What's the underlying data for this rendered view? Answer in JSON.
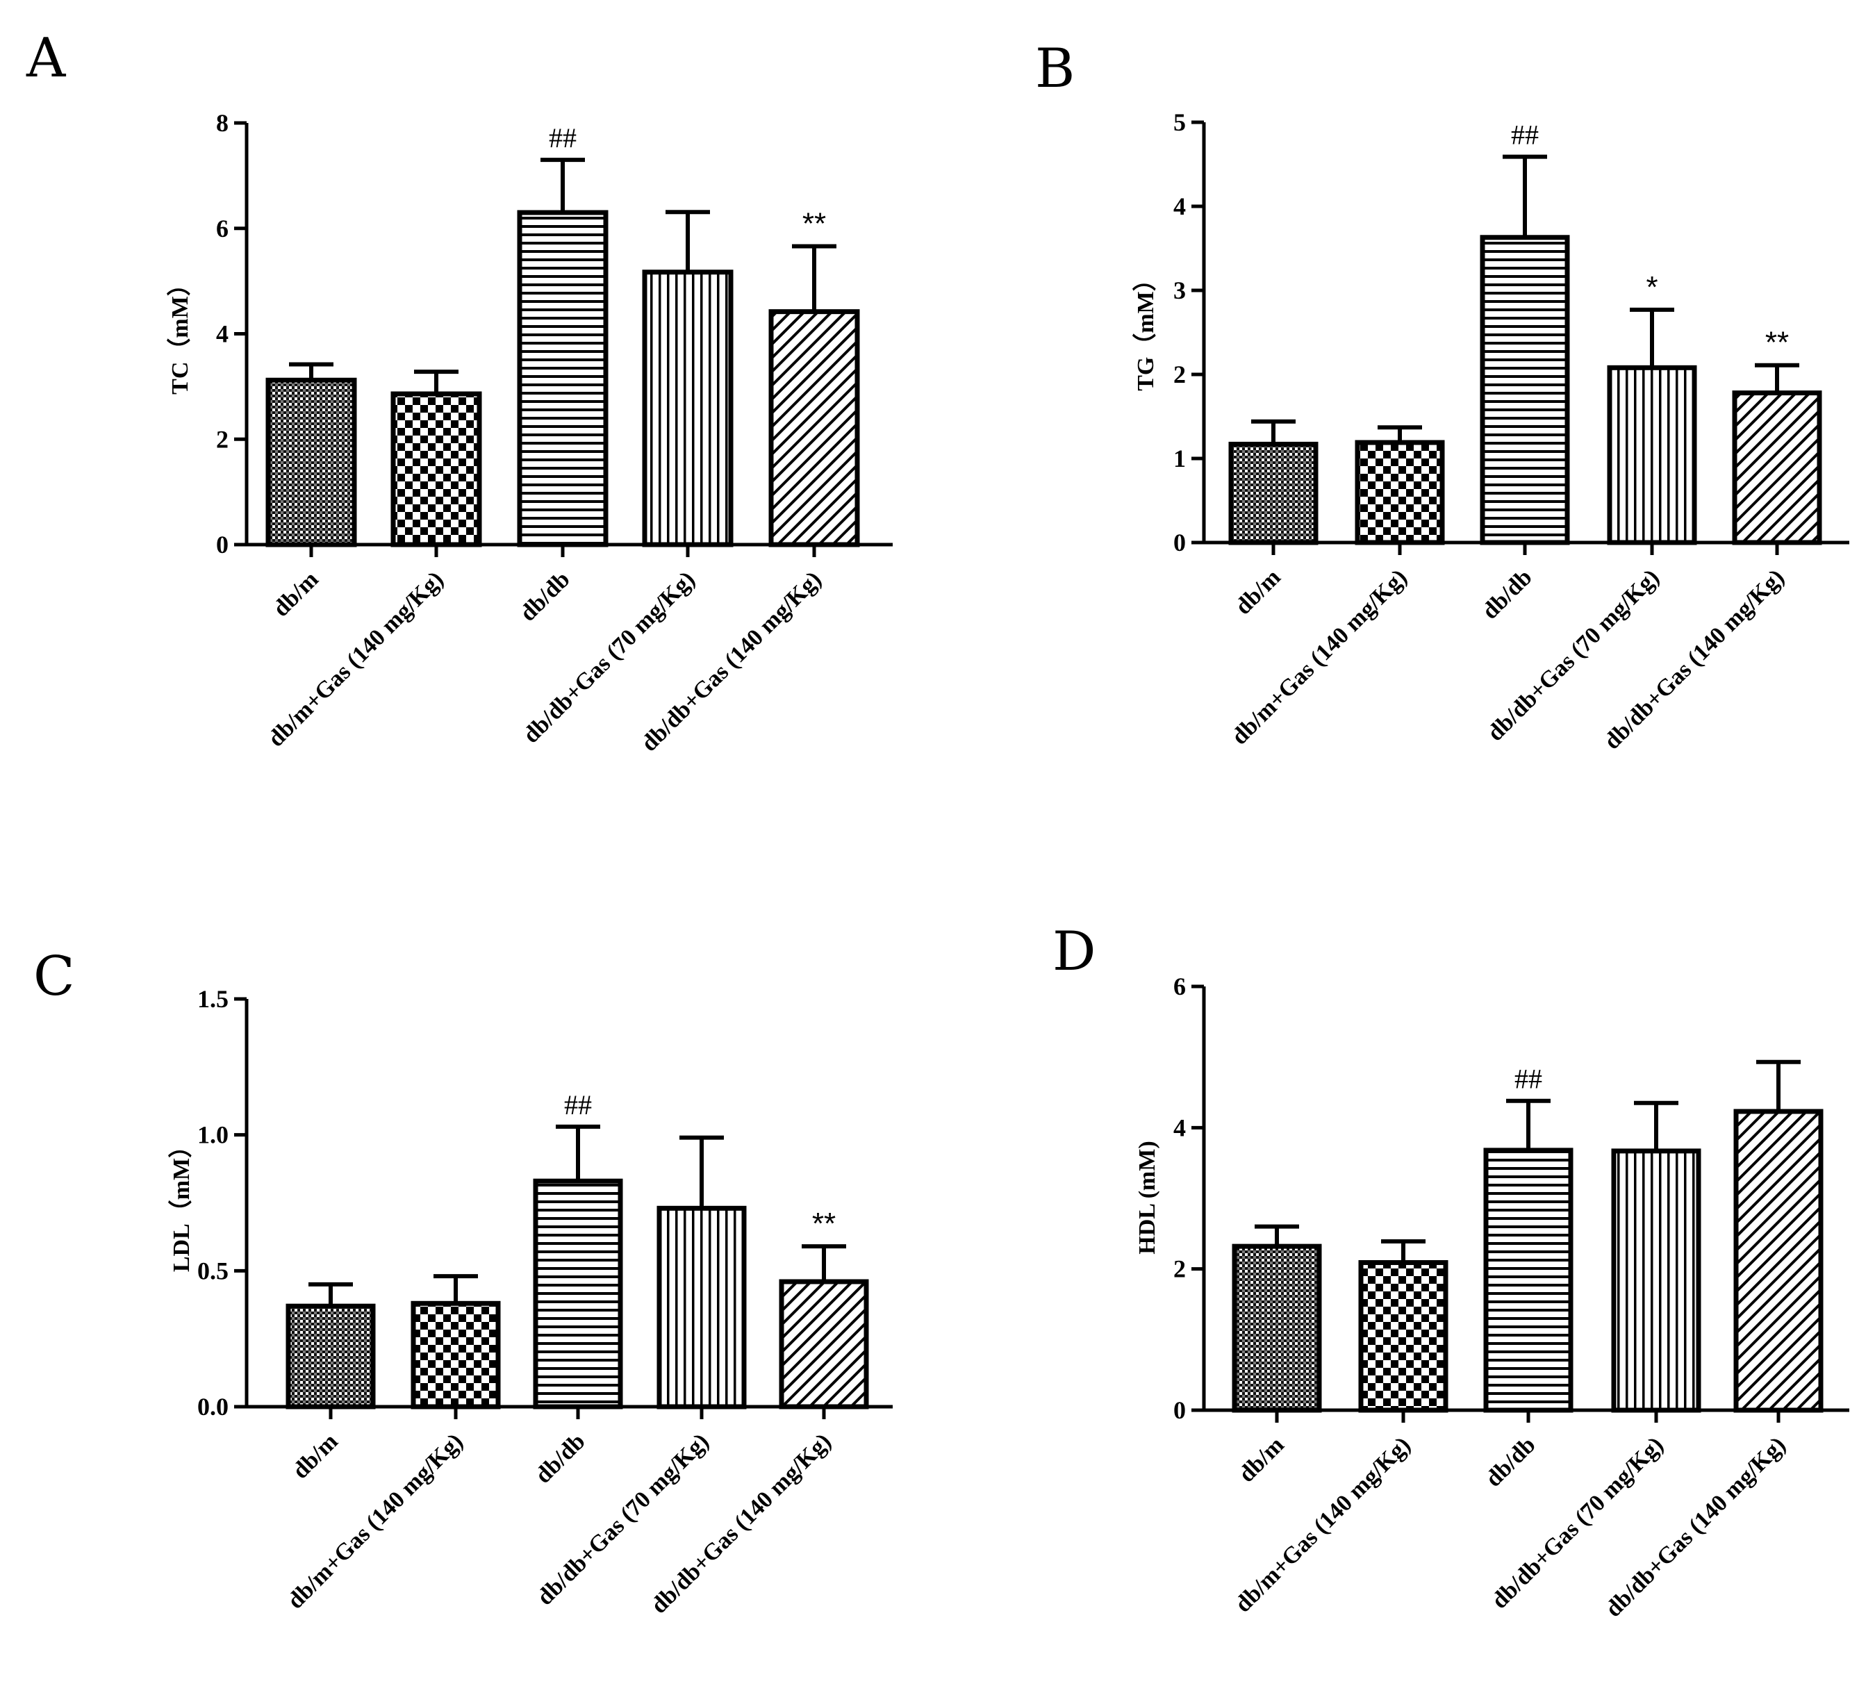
{
  "categories": [
    "db/m",
    "db/m+Gas (140 mg/Kg)",
    "db/db",
    "db/db+Gas (70 mg/Kg)",
    "db/db+Gas (140 mg/Kg)"
  ],
  "chart_data": [
    {
      "panel": "A",
      "type": "bar",
      "ylabel": "TC（mM）",
      "ylim": [
        0,
        8
      ],
      "yticks": [
        "0",
        "2",
        "4",
        "6",
        "8"
      ],
      "tick_values": [
        0,
        2,
        4,
        6,
        8
      ],
      "categories": [
        "db/m",
        "db/m+Gas (140 mg/Kg)",
        "db/db",
        "db/db+Gas (70 mg/Kg)",
        "db/db+Gas (140 mg/Kg)"
      ],
      "values": [
        3.12,
        2.86,
        6.3,
        5.17,
        4.42
      ],
      "errors": [
        0.3,
        0.42,
        1.0,
        1.14,
        1.24
      ],
      "annotations": [
        "",
        "",
        "##",
        "",
        "**"
      ]
    },
    {
      "panel": "B",
      "type": "bar",
      "ylabel": "TG（mM）",
      "ylim": [
        0,
        5
      ],
      "yticks": [
        "0",
        "1",
        "2",
        "3",
        "4",
        "5"
      ],
      "tick_values": [
        0,
        1,
        2,
        3,
        4,
        5
      ],
      "categories": [
        "db/m",
        "db/m+Gas (140 mg/Kg)",
        "db/db",
        "db/db+Gas (70 mg/Kg)",
        "db/db+Gas (140 mg/Kg)"
      ],
      "values": [
        1.17,
        1.19,
        3.63,
        2.08,
        1.78
      ],
      "errors": [
        0.27,
        0.18,
        0.96,
        0.69,
        0.33
      ],
      "annotations": [
        "",
        "",
        "##",
        "*",
        "**"
      ]
    },
    {
      "panel": "C",
      "type": "bar",
      "ylabel": "LDL（mM）",
      "ylim": [
        0,
        1.5
      ],
      "yticks": [
        "0.0",
        "0.5",
        "1.0",
        "1.5"
      ],
      "tick_values": [
        0,
        0.5,
        1.0,
        1.5
      ],
      "categories": [
        "db/m",
        "db/m+Gas (140 mg/Kg)",
        "db/db",
        "db/db+Gas (70 mg/Kg)",
        "db/db+Gas (140 mg/Kg)"
      ],
      "values": [
        0.37,
        0.38,
        0.83,
        0.73,
        0.46
      ],
      "errors": [
        0.08,
        0.1,
        0.2,
        0.26,
        0.13
      ],
      "annotations": [
        "",
        "",
        "##",
        "",
        "**"
      ]
    },
    {
      "panel": "D",
      "type": "bar",
      "ylabel": "HDL (mM)",
      "ylim": [
        0,
        6
      ],
      "yticks": [
        "0",
        "2",
        "4",
        "6"
      ],
      "tick_values": [
        0,
        2,
        4,
        6
      ],
      "categories": [
        "db/m",
        "db/m+Gas (140 mg/Kg)",
        "db/db",
        "db/db+Gas (70 mg/Kg)",
        "db/db+Gas (140 mg/Kg)"
      ],
      "values": [
        2.32,
        2.09,
        3.68,
        3.67,
        4.23
      ],
      "errors": [
        0.28,
        0.3,
        0.7,
        0.68,
        0.7
      ],
      "annotations": [
        "",
        "",
        "##",
        "",
        ""
      ]
    }
  ]
}
